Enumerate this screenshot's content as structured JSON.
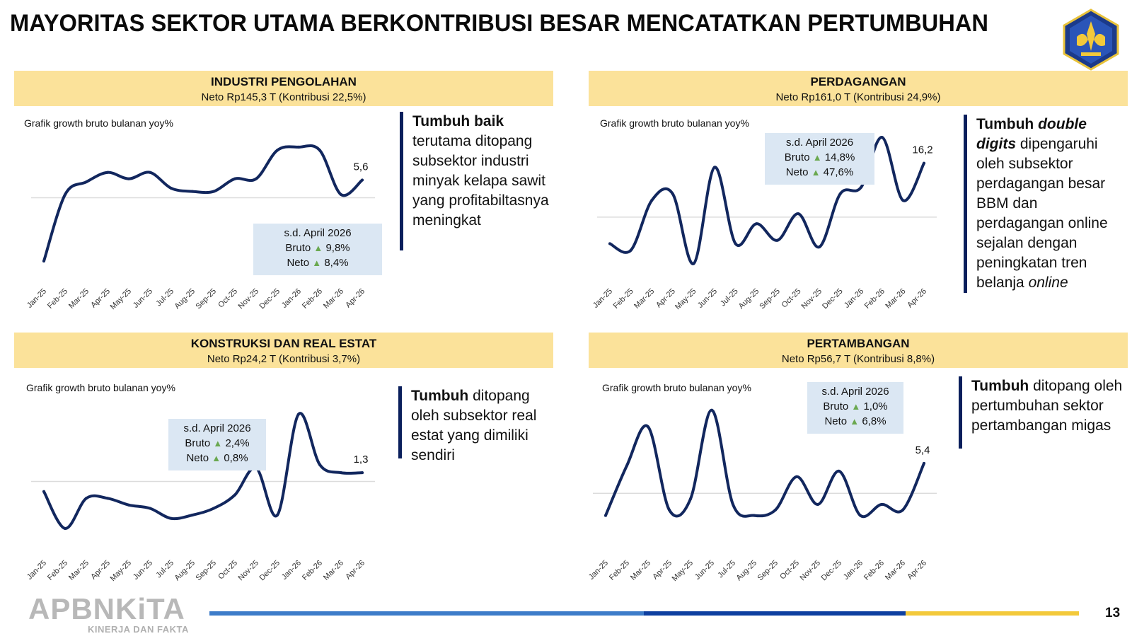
{
  "title": "MAYORITAS SEKTOR UTAMA BERKONTRIBUSI BESAR MENCATATKAN PERTUMBUHAN",
  "footer": {
    "brand": "APBNKiTA",
    "tagline": "KINERJA DAN FAKTA",
    "page_number": "13"
  },
  "colors": {
    "line": "#12275e",
    "header_bg": "#fbe29a",
    "stat_bg": "#dbe7f3",
    "up_triangle": "#6aa84f"
  },
  "panels": [
    {
      "id": "industri",
      "header_title": "INDUSTRI PENGOLAHAN",
      "header_sub": "Neto Rp145,3 T (Kontribusi 22,5%)",
      "chart_label": "Grafik growth bruto bulanan yoy%",
      "stat": {
        "title": "s.d. April 2026",
        "bruto_label": "Bruto",
        "bruto_value": "9,8%",
        "neto_label": "Neto",
        "neto_value": "8,4%"
      },
      "desc_bold": "Tumbuh baik",
      "desc_rest": "terutama ditopang subsektor industri minyak kelapa sawit yang profitabiltasnya meningkat"
    },
    {
      "id": "perdagangan",
      "header_title": "PERDAGANGAN",
      "header_sub": "Neto Rp161,0 T (Kontribusi 24,9%)",
      "chart_label": "Grafik growth bruto bulanan yoy%",
      "stat": {
        "title": "s.d. April 2026",
        "bruto_label": "Bruto",
        "bruto_value": "14,8%",
        "neto_label": "Neto",
        "neto_value": "47,6%"
      },
      "desc_bold": "Tumbuh",
      "desc_bold_italic": "double digits",
      "desc_rest": "dipengaruhi oleh subsektor perdagangan besar BBM dan perdagangan online sejalan dengan peningkatan tren belanja",
      "desc_italic_end": "online"
    },
    {
      "id": "konstruksi",
      "header_title": "KONSTRUKSI DAN REAL ESTAT",
      "header_sub": "Neto Rp24,2 T (Kontribusi 3,7%)",
      "chart_label": "Grafik growth bruto bulanan yoy%",
      "stat": {
        "title": "s.d. April 2026",
        "bruto_label": "Bruto",
        "bruto_value": "2,4%",
        "neto_label": "Neto",
        "neto_value": "0,8%"
      },
      "desc_bold": "Tumbuh",
      "desc_rest": "ditopang oleh subsektor real estat yang dimiliki sendiri"
    },
    {
      "id": "pertambangan",
      "header_title": "PERTAMBANGAN",
      "header_sub": "Neto Rp56,7 T (Kontribusi 8,8%)",
      "chart_label": "Grafik growth bruto bulanan yoy%",
      "stat": {
        "title": "s.d. April 2026",
        "bruto_label": "Bruto",
        "bruto_value": "1,0%",
        "neto_label": "Neto",
        "neto_value": "6,8%"
      },
      "desc_bold": "Tumbuh",
      "desc_rest": "ditopang oleh pertumbuhan sektor pertambangan migas"
    }
  ],
  "chart_data": [
    {
      "type": "line",
      "title": "INDUSTRI PENGOLAHAN",
      "x": [
        "Jan-25",
        "Feb-25",
        "Mar-25",
        "Apr-25",
        "May-25",
        "Jun-25",
        "Jul-25",
        "Aug-25",
        "Sep-25",
        "Oct-25",
        "Nov-25",
        "Dec-25",
        "Jan-26",
        "Feb-26",
        "Mar-26",
        "Apr-26"
      ],
      "values": [
        -20,
        1,
        5,
        8,
        6,
        8,
        3,
        2,
        2,
        6,
        6,
        15,
        16,
        15,
        1,
        5.6
      ],
      "ylim": [
        -22,
        20
      ],
      "last_label": "5,6",
      "grid": "single zero line"
    },
    {
      "type": "line",
      "title": "PERDAGANGAN",
      "x": [
        "Jan-25",
        "Feb-25",
        "Mar-25",
        "Apr-25",
        "May-25",
        "Jun-25",
        "Jul-25",
        "Aug-25",
        "Sep-25",
        "Oct-25",
        "Nov-25",
        "Dec-25",
        "Jan-26",
        "Feb-26",
        "Mar-26",
        "Apr-26"
      ],
      "values": [
        -8,
        -10,
        5,
        7,
        -14,
        15,
        -8,
        -2,
        -7,
        1,
        -9,
        7,
        9,
        24,
        5,
        16.2
      ],
      "ylim": [
        -16,
        27
      ],
      "last_label": "16,2",
      "grid": "single zero line"
    },
    {
      "type": "line",
      "title": "KONSTRUKSI DAN REAL ESTAT",
      "x": [
        "Jan-25",
        "Feb-25",
        "Mar-25",
        "Apr-25",
        "May-25",
        "Jun-25",
        "Jul-25",
        "Aug-25",
        "Sep-25",
        "Oct-25",
        "Nov-25",
        "Dec-25",
        "Jan-26",
        "Feb-26",
        "Mar-26",
        "Apr-26"
      ],
      "values": [
        -1.5,
        -7,
        -2.5,
        -2.5,
        -3.5,
        -4,
        -5.5,
        -5,
        -4,
        -2,
        2,
        -5,
        10,
        2.5,
        1.3,
        1.3
      ],
      "ylim": [
        -9,
        11
      ],
      "last_label": "1,3",
      "grid": "single zero line"
    },
    {
      "type": "line",
      "title": "PERTAMBANGAN",
      "x": [
        "Jan-25",
        "Feb-25",
        "Mar-25",
        "Apr-25",
        "May-25",
        "Jun-25",
        "Jul-25",
        "Aug-25",
        "Sep-25",
        "Oct-25",
        "Nov-25",
        "Dec-25",
        "Jan-26",
        "Feb-26",
        "Mar-26",
        "Apr-26"
      ],
      "values": [
        -4,
        5,
        12,
        -3,
        -1,
        15,
        -2,
        -4,
        -3,
        3,
        -2,
        4,
        -4,
        -2,
        -3,
        5.4
      ],
      "ylim": [
        -8,
        17
      ],
      "last_label": "5,4",
      "grid": "single zero line"
    }
  ]
}
